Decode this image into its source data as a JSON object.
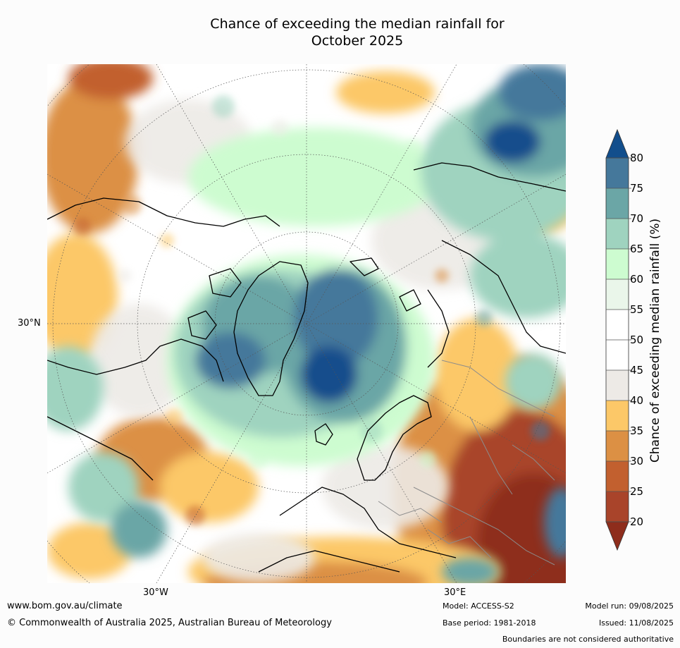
{
  "title_line1": "Chance of exceeding the median rainfall for",
  "title_line2": "October 2025",
  "map": {
    "lon_labels": [
      "30°W",
      "30°E"
    ],
    "lat_labels": [
      "30°N"
    ]
  },
  "colorbar": {
    "label": "Chance of exceeding median rainfall (%)",
    "ticks": [
      "80",
      "75",
      "70",
      "65",
      "60",
      "55",
      "50",
      "45",
      "40",
      "35",
      "30",
      "25",
      "20"
    ],
    "bands": [
      {
        "range": "below 20",
        "color": "#8e2d1c"
      },
      {
        "range": "20-25",
        "color": "#a9442a"
      },
      {
        "range": "25-30",
        "color": "#c2602f"
      },
      {
        "range": "30-35",
        "color": "#dc9044"
      },
      {
        "range": "35-40",
        "color": "#fcc868"
      },
      {
        "range": "40-45",
        "color": "#edeae6"
      },
      {
        "range": "45-50",
        "color": "#ffffff"
      },
      {
        "range": "50-55",
        "color": "#ffffff"
      },
      {
        "range": "55-60",
        "color": "#eaf6ea"
      },
      {
        "range": "60-65",
        "color": "#cdfcd0"
      },
      {
        "range": "65-70",
        "color": "#9fd3bf"
      },
      {
        "range": "70-75",
        "color": "#6ba6a6"
      },
      {
        "range": "75-80",
        "color": "#45789b"
      },
      {
        "range": "above 80",
        "color": "#124e8c"
      }
    ]
  },
  "footer": {
    "website": "www.bom.gov.au/climate",
    "copyright": "© Commonwealth of Australia 2025, Australian Bureau of Meteorology",
    "model": "Model: ACCESS-S2",
    "base_period": "Base period: 1981-2018",
    "model_run": "Model run: 09/08/2025",
    "issued": "Issued: 11/08/2025",
    "disclaimer": "Boundaries are not considered authoritative"
  }
}
